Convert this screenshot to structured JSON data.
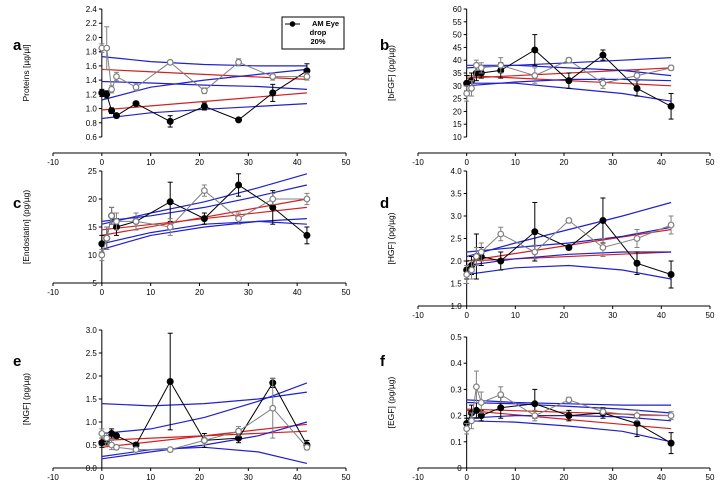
{
  "colors": {
    "filled_series": "#000000",
    "open_series": "#808080",
    "red_fit": "#d42020",
    "blue_fit": "#2020d0"
  },
  "legend": {
    "title": "AM Eye drop 20%",
    "lines": [
      "AM Eye",
      "drop",
      "20%"
    ],
    "placement": "top-right of panel a"
  },
  "chart_data": [
    {
      "panel": "a",
      "type": "line",
      "ylabel": "Proteins [µg/µl]",
      "xlim": [
        -10,
        50
      ],
      "xticks": [
        -10,
        0,
        10,
        20,
        30,
        40,
        50
      ],
      "ylim": [
        0.6,
        2.4
      ],
      "yticks": [
        "0.6",
        "0.8",
        "1.0",
        "1.2",
        "1.4",
        "1.6",
        "1.8",
        "2.0",
        "2.2",
        "2.4"
      ],
      "series": [
        {
          "name": "AM Eye drop 20%",
          "marker": "filled-circle",
          "x": [
            0,
            1,
            2,
            3,
            7,
            14,
            21,
            28,
            35,
            42
          ],
          "y": [
            1.22,
            1.2,
            0.97,
            0.9,
            1.07,
            0.82,
            1.03,
            0.84,
            1.22,
            1.53
          ],
          "err": [
            0.05,
            0.05,
            0.04,
            0.03,
            0.03,
            0.08,
            0.05,
            0.02,
            0.12,
            0.1
          ]
        },
        {
          "marker": "open-circle",
          "x": [
            0,
            1,
            2,
            3,
            7,
            14,
            21,
            28,
            35,
            42
          ],
          "y": [
            1.85,
            1.85,
            1.27,
            1.45,
            1.3,
            1.65,
            1.25,
            1.65,
            1.45,
            1.45
          ],
          "err": [
            0.06,
            0.3,
            0.05,
            0.06,
            0.05,
            0.02,
            0.04,
            0.05,
            0.05,
            0.05
          ]
        }
      ],
      "fit_lines": [
        {
          "color": "red",
          "x": [
            0,
            42
          ],
          "y": [
            0.98,
            1.22
          ]
        },
        {
          "color": "red",
          "x": [
            0,
            42
          ],
          "y": [
            1.55,
            1.41
          ]
        },
        {
          "color": "blue",
          "x": [
            0,
            10,
            21,
            32,
            42
          ],
          "y": [
            0.86,
            0.94,
            0.99,
            1.03,
            1.07
          ]
        },
        {
          "color": "blue",
          "x": [
            0,
            10,
            21,
            32,
            42
          ],
          "y": [
            1.12,
            1.3,
            1.4,
            1.48,
            1.55
          ]
        },
        {
          "color": "blue",
          "x": [
            0,
            10,
            21,
            32,
            42
          ],
          "y": [
            1.38,
            1.36,
            1.33,
            1.31,
            1.27
          ]
        },
        {
          "color": "blue",
          "x": [
            0,
            10,
            21,
            32,
            42
          ],
          "y": [
            1.73,
            1.66,
            1.62,
            1.6,
            1.6
          ]
        }
      ]
    },
    {
      "panel": "b",
      "type": "line",
      "ylabel": "[bFGF] (pg/µg)",
      "xlim": [
        -10,
        50
      ],
      "xticks": [
        -10,
        0,
        10,
        20,
        30,
        40,
        50
      ],
      "ylim": [
        10,
        60
      ],
      "yticks": [
        "10",
        "15",
        "20",
        "25",
        "30",
        "35",
        "40",
        "45",
        "50",
        "55",
        "60"
      ],
      "series": [
        {
          "name": "AM Eye drop 20%",
          "marker": "filled-circle",
          "x": [
            0,
            1,
            2,
            3,
            7,
            14,
            21,
            28,
            35,
            42
          ],
          "y": [
            31,
            32,
            35,
            35,
            36,
            44,
            32,
            42,
            29,
            22
          ],
          "err": [
            3,
            3,
            3,
            2,
            3,
            6,
            3,
            2,
            3,
            5
          ]
        },
        {
          "marker": "open-circle",
          "x": [
            0,
            1,
            2,
            3,
            7,
            14,
            21,
            28,
            35,
            42
          ],
          "y": [
            27,
            29,
            38,
            37,
            38,
            34,
            40,
            31,
            34,
            37
          ],
          "err": [
            3,
            3,
            2,
            2,
            3,
            3,
            1,
            2,
            2,
            1
          ]
        }
      ],
      "fit_lines": [
        {
          "color": "red",
          "x": [
            0,
            42
          ],
          "y": [
            34,
            30
          ]
        },
        {
          "color": "red",
          "x": [
            0,
            42
          ],
          "y": [
            33,
            37
          ]
        },
        {
          "color": "blue",
          "x": [
            0,
            10,
            21,
            32,
            42
          ],
          "y": [
            31,
            31,
            29,
            27,
            24
          ]
        },
        {
          "color": "blue",
          "x": [
            0,
            10,
            21,
            32,
            42
          ],
          "y": [
            38,
            38,
            37,
            36,
            34
          ]
        },
        {
          "color": "blue",
          "x": [
            0,
            10,
            21,
            32,
            42
          ],
          "y": [
            30,
            31.5,
            32.5,
            32.5,
            32
          ]
        },
        {
          "color": "blue",
          "x": [
            0,
            10,
            21,
            32,
            42
          ],
          "y": [
            37,
            38,
            39,
            40,
            41
          ]
        }
      ]
    },
    {
      "panel": "c",
      "type": "line",
      "ylabel": "[Endostatin] (pg/µg)",
      "xlim": [
        -10,
        50
      ],
      "xticks": [
        -10,
        0,
        10,
        20,
        30,
        40,
        50
      ],
      "ylim": [
        5,
        25
      ],
      "yticks": [
        "5",
        "10",
        "15",
        "20",
        "25"
      ],
      "series": [
        {
          "name": "AM Eye drop 20%",
          "marker": "filled-circle",
          "x": [
            0,
            1,
            2,
            3,
            7,
            14,
            21,
            28,
            35,
            42
          ],
          "y": [
            12,
            13,
            17,
            15,
            16,
            19.5,
            16.5,
            22.5,
            18.5,
            13.5
          ],
          "err": [
            1.5,
            2,
            1.5,
            1.5,
            1.5,
            3.5,
            1,
            2,
            3,
            1.5
          ]
        },
        {
          "marker": "open-circle",
          "x": [
            0,
            1,
            2,
            3,
            7,
            14,
            21,
            28,
            35,
            42
          ],
          "y": [
            10,
            13,
            17,
            16,
            16,
            15,
            21.5,
            16.5,
            20,
            20
          ],
          "err": [
            1,
            2,
            1.5,
            1.5,
            1.5,
            1.5,
            1,
            1,
            1,
            1
          ]
        }
      ],
      "fit_lines": [
        {
          "color": "red",
          "x": [
            0,
            42
          ],
          "y": [
            14.5,
            18.5
          ]
        },
        {
          "color": "red",
          "x": [
            0,
            42
          ],
          "y": [
            13.5,
            20
          ]
        },
        {
          "color": "blue",
          "x": [
            0,
            10,
            21,
            32,
            42
          ],
          "y": [
            12,
            14,
            15.5,
            16,
            15.5
          ]
        },
        {
          "color": "blue",
          "x": [
            0,
            10,
            21,
            32,
            42
          ],
          "y": [
            16,
            17,
            18.5,
            20.5,
            22.5
          ]
        },
        {
          "color": "blue",
          "x": [
            0,
            10,
            21,
            32,
            42
          ],
          "y": [
            11,
            13.5,
            15,
            16,
            16.5
          ]
        },
        {
          "color": "blue",
          "x": [
            0,
            10,
            21,
            32,
            42
          ],
          "y": [
            15.5,
            17.5,
            19.5,
            22,
            24.5
          ]
        }
      ]
    },
    {
      "panel": "d",
      "type": "line",
      "ylabel": "[HGF] (pg/µg)",
      "xlim": [
        -10,
        50
      ],
      "xticks": [
        -10,
        0,
        10,
        20,
        30,
        40,
        50
      ],
      "ylim": [
        1.0,
        4.0
      ],
      "yticks": [
        "1.0",
        "1.5",
        "2.0",
        "2.5",
        "3.0",
        "3.5",
        "4.0"
      ],
      "series": [
        {
          "name": "AM Eye drop 20%",
          "marker": "filled-circle",
          "x": [
            0,
            1,
            2,
            3,
            7,
            14,
            21,
            28,
            35,
            42
          ],
          "y": [
            1.8,
            1.9,
            2.1,
            2.1,
            2.0,
            2.65,
            2.3,
            2.9,
            1.95,
            1.7
          ],
          "err": [
            0.2,
            0.2,
            0.5,
            0.2,
            0.2,
            0.65,
            0.05,
            0.5,
            0.25,
            0.3
          ]
        },
        {
          "marker": "open-circle",
          "x": [
            0,
            1,
            2,
            3,
            7,
            14,
            21,
            28,
            35,
            42
          ],
          "y": [
            1.7,
            1.8,
            2.1,
            2.2,
            2.6,
            2.2,
            2.9,
            2.3,
            2.5,
            2.8
          ],
          "err": [
            0.2,
            0.2,
            0.2,
            0.2,
            0.15,
            0.15,
            0.05,
            0.2,
            0.2,
            0.2
          ]
        }
      ],
      "fit_lines": [
        {
          "color": "red",
          "x": [
            0,
            42
          ],
          "y": [
            2.0,
            2.2
          ]
        },
        {
          "color": "red",
          "x": [
            0,
            42
          ],
          "y": [
            2.0,
            2.7
          ]
        },
        {
          "color": "blue",
          "x": [
            0,
            10,
            21,
            32,
            42
          ],
          "y": [
            1.7,
            1.85,
            1.9,
            1.8,
            1.6
          ]
        },
        {
          "color": "blue",
          "x": [
            0,
            10,
            21,
            32,
            42
          ],
          "y": [
            2.2,
            2.3,
            2.4,
            2.55,
            2.75
          ]
        },
        {
          "color": "blue",
          "x": [
            0,
            10,
            21,
            32,
            42
          ],
          "y": [
            1.9,
            2.05,
            2.15,
            2.2,
            2.2
          ]
        },
        {
          "color": "blue",
          "x": [
            0,
            10,
            21,
            32,
            42
          ],
          "y": [
            2.1,
            2.4,
            2.7,
            3.0,
            3.3
          ]
        }
      ]
    },
    {
      "panel": "e",
      "type": "line",
      "ylabel": "[NGF] (pg/µg)",
      "xlim": [
        -10,
        50
      ],
      "xticks": [
        -10,
        0,
        10,
        20,
        30,
        40,
        50
      ],
      "ylim": [
        0.0,
        3.0
      ],
      "yticks": [
        "0.0",
        "0.5",
        "1.0",
        "1.5",
        "2.0",
        "2.5",
        "3.0"
      ],
      "series": [
        {
          "name": "AM Eye drop 20%",
          "marker": "filled-circle",
          "x": [
            0,
            1,
            2,
            3,
            7,
            14,
            21,
            28,
            35,
            42
          ],
          "y": [
            0.55,
            0.6,
            0.75,
            0.7,
            0.5,
            1.88,
            0.6,
            0.65,
            1.85,
            0.5
          ],
          "err": [
            0.1,
            0.1,
            0.1,
            0.05,
            0.05,
            1.05,
            0.15,
            0.1,
            0.1,
            0.1
          ]
        },
        {
          "marker": "open-circle",
          "x": [
            0,
            1,
            2,
            3,
            7,
            14,
            21,
            28,
            35,
            42
          ],
          "y": [
            0.75,
            0.65,
            0.5,
            0.45,
            0.4,
            0.4,
            0.6,
            0.8,
            1.3,
            0.45
          ],
          "err": [
            0.1,
            0.1,
            0.1,
            0.05,
            0.05,
            0.05,
            0.1,
            0.1,
            0.65,
            0.05
          ]
        }
      ],
      "fit_lines": [
        {
          "color": "red",
          "x": [
            0,
            42
          ],
          "y": [
            0.45,
            0.95
          ]
        },
        {
          "color": "red",
          "x": [
            0,
            42
          ],
          "y": [
            0.6,
            0.8
          ]
        },
        {
          "color": "blue",
          "x": [
            0,
            10,
            21,
            32,
            42
          ],
          "y": [
            0.2,
            0.35,
            0.5,
            0.7,
            1.0
          ]
        },
        {
          "color": "blue",
          "x": [
            0,
            10,
            21,
            32,
            42
          ],
          "y": [
            0.75,
            0.85,
            1.1,
            1.45,
            1.85
          ]
        },
        {
          "color": "blue",
          "x": [
            0,
            10,
            21,
            32,
            42
          ],
          "y": [
            0.25,
            0.4,
            0.45,
            0.35,
            0.1
          ]
        },
        {
          "color": "blue",
          "x": [
            0,
            10,
            21,
            32,
            42
          ],
          "y": [
            1.4,
            1.35,
            1.4,
            1.5,
            1.65
          ]
        }
      ]
    },
    {
      "panel": "f",
      "type": "line",
      "ylabel": "[EGF] (pg/µg)",
      "xlim": [
        -10,
        50
      ],
      "xticks": [
        -10,
        0,
        10,
        20,
        30,
        40,
        50
      ],
      "ylim": [
        0.0,
        0.5
      ],
      "yticks": [
        "0",
        "0.1",
        "0.2",
        "0.3",
        "0.4",
        "0.5"
      ],
      "series": [
        {
          "name": "AM Eye drop 20%",
          "marker": "filled-circle",
          "x": [
            0,
            1,
            2,
            3,
            7,
            14,
            21,
            28,
            35,
            42
          ],
          "y": [
            0.17,
            0.21,
            0.22,
            0.2,
            0.23,
            0.245,
            0.2,
            0.21,
            0.17,
            0.095
          ],
          "err": [
            0.02,
            0.03,
            0.03,
            0.02,
            0.04,
            0.055,
            0.02,
            0.02,
            0.05,
            0.04
          ]
        },
        {
          "marker": "open-circle",
          "x": [
            0,
            1,
            2,
            3,
            7,
            14,
            21,
            28,
            35,
            42
          ],
          "y": [
            0.15,
            0.18,
            0.31,
            0.25,
            0.28,
            0.2,
            0.26,
            0.215,
            0.2,
            0.2
          ],
          "err": [
            0.02,
            0.03,
            0.06,
            0.04,
            0.03,
            0.02,
            0.01,
            0.01,
            0.02,
            0.015
          ]
        }
      ],
      "fit_lines": [
        {
          "color": "red",
          "x": [
            0,
            42
          ],
          "y": [
            0.225,
            0.2
          ]
        },
        {
          "color": "red",
          "x": [
            0,
            42
          ],
          "y": [
            0.22,
            0.15
          ]
        },
        {
          "color": "blue",
          "x": [
            0,
            10,
            21,
            32,
            42
          ],
          "y": [
            0.19,
            0.2,
            0.2,
            0.195,
            0.18
          ]
        },
        {
          "color": "blue",
          "x": [
            0,
            10,
            21,
            32,
            42
          ],
          "y": [
            0.26,
            0.25,
            0.245,
            0.24,
            0.24
          ]
        },
        {
          "color": "blue",
          "x": [
            0,
            10,
            21,
            32,
            42
          ],
          "y": [
            0.18,
            0.175,
            0.16,
            0.14,
            0.1
          ]
        },
        {
          "color": "blue",
          "x": [
            0,
            10,
            21,
            32,
            42
          ],
          "y": [
            0.25,
            0.245,
            0.235,
            0.225,
            0.21
          ]
        }
      ]
    }
  ]
}
